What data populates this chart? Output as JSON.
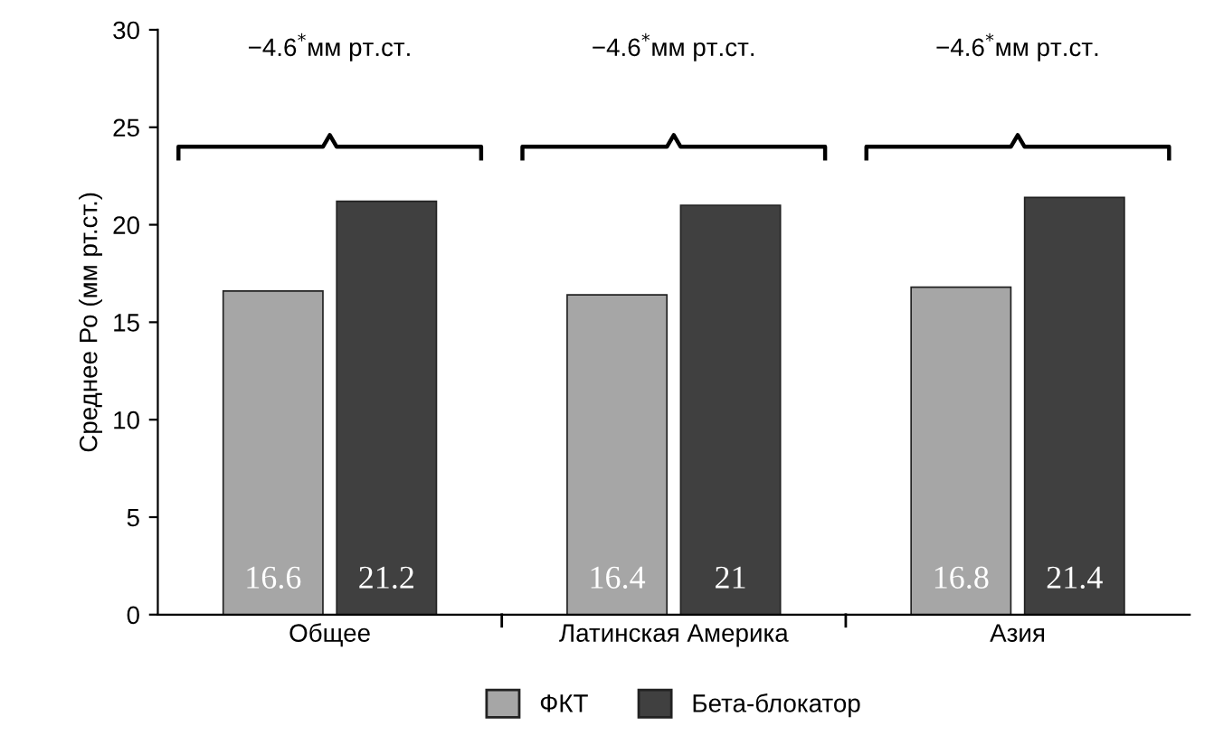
{
  "chart_data": {
    "type": "bar",
    "ylabel": "Среднее Ро (мм рт.ст.)",
    "categories": [
      "Общее",
      "Латинская Америка",
      "Азия"
    ],
    "series": [
      {
        "name": "ФКТ",
        "color": "#a6a6a6",
        "values": [
          16.6,
          16.4,
          16.8
        ]
      },
      {
        "name": "Бета-блокатор",
        "color": "#404040",
        "values": [
          21.2,
          21,
          21.4
        ]
      }
    ],
    "ylim": [
      0,
      30
    ],
    "yticks": [
      0,
      5,
      10,
      15,
      20,
      25,
      30
    ],
    "grid": false,
    "legend": "bottom",
    "data_labels": true,
    "annotations": [
      "−4.6$^{*}$мм рт.ст.",
      "−4.6$^{*}$мм рт.ст.",
      "−4.6$^{*}$мм рт.ст."
    ]
  }
}
